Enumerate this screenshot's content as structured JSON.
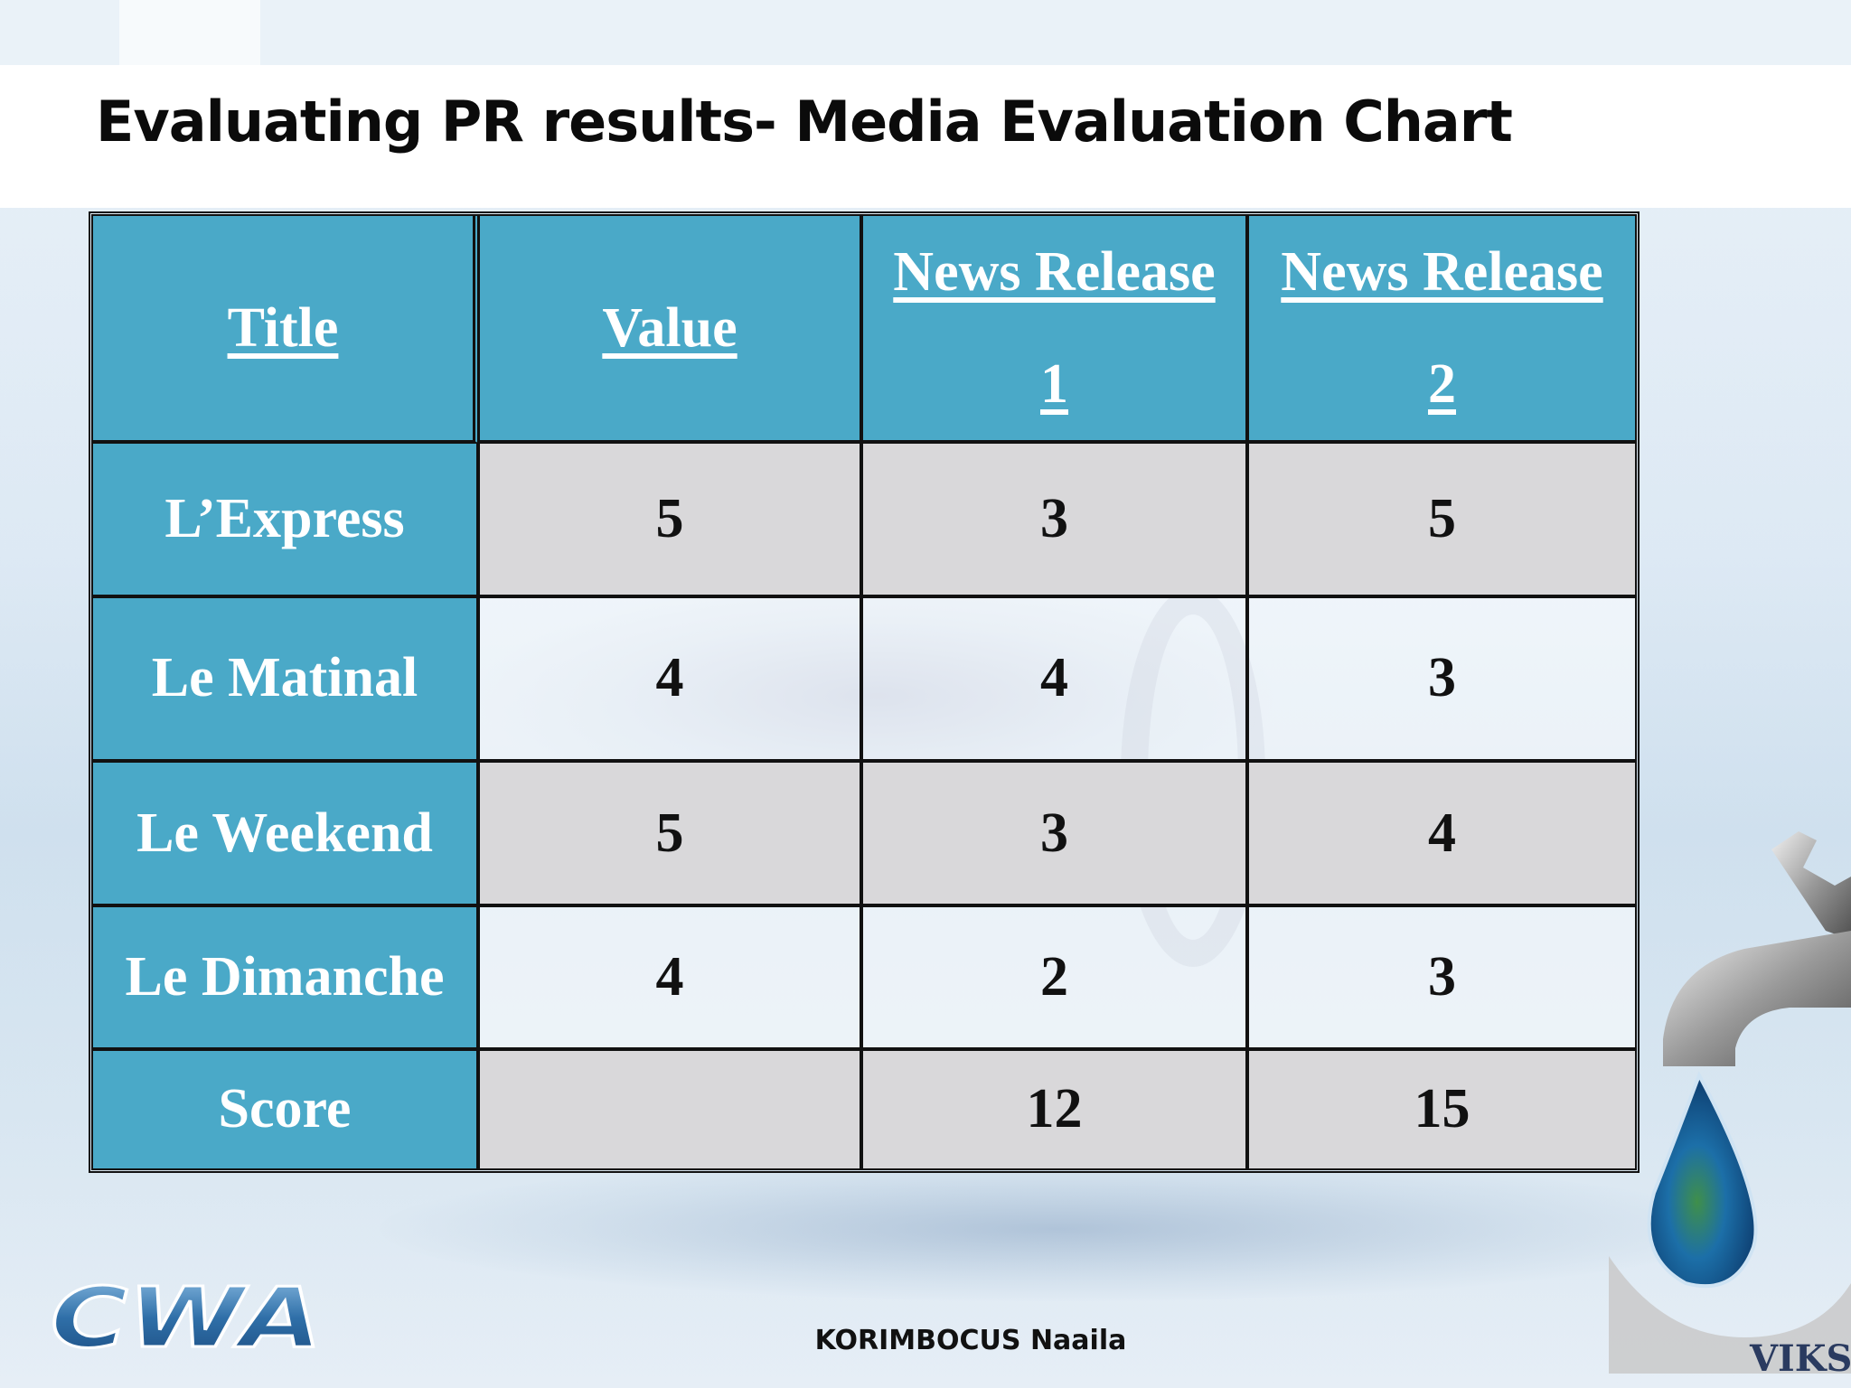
{
  "slide": {
    "title": "Evaluating PR results- Media Evaluation Chart",
    "footer_author": "KORIMBOCUS Naaila",
    "logo_text": "CWA",
    "brand_mark": "VIKS"
  },
  "table": {
    "columns": [
      "Title",
      "Value",
      "News Release 1",
      "News Release 2"
    ],
    "header": {
      "title": "Title",
      "value": "Value",
      "nr1_line1": "News Release",
      "nr1_line2": "1",
      "nr2_line1": "News Release",
      "nr2_line2": "2"
    },
    "rows": [
      {
        "title": "L’Express",
        "value": "5",
        "nr1": "3",
        "nr2": "5"
      },
      {
        "title": "Le Matinal",
        "value": "4",
        "nr1": "4",
        "nr2": "3"
      },
      {
        "title": "Le Weekend",
        "value": "5",
        "nr1": "3",
        "nr2": "4"
      },
      {
        "title": "Le Dimanche",
        "value": "4",
        "nr1": "2",
        "nr2": "3"
      },
      {
        "title": "Score",
        "value": "",
        "nr1": "12",
        "nr2": "15"
      }
    ]
  },
  "colors": {
    "header_blue": "#4aa9c8",
    "row_grey": "#d9d8da",
    "logo_blue": "#2f6fa8"
  },
  "icons": [
    "cwa-logo",
    "water-tap-icon",
    "water-drop-globe-icon"
  ]
}
